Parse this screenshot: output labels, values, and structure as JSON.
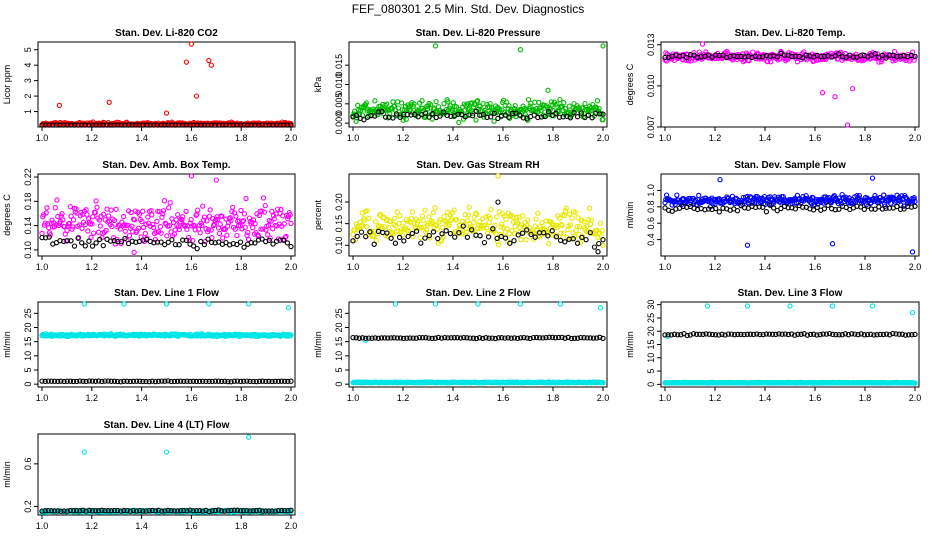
{
  "title": "FEF_080301  2.5 Min. Std. Dev. Diagnostics",
  "colors": {
    "red": "#ff0000",
    "green": "#00bb00",
    "magenta": "#ff00ff",
    "yellow": "#e8e800",
    "blue": "#0000ff",
    "cyan": "#00e5e5",
    "black": "#000000"
  },
  "chart_data": [
    {
      "type": "scatter",
      "title": "Stan. Dev. Li-820 CO2",
      "ylabel": "Licor ppm",
      "xlim": [
        1.0,
        2.0
      ],
      "ylim": [
        0,
        5.5
      ],
      "xticks": [
        "1.0",
        "1.2",
        "1.4",
        "1.6",
        "1.8",
        "2.0"
      ],
      "yticks": [
        {
          "v": 1,
          "label": "1"
        },
        {
          "v": 2,
          "label": "2"
        },
        {
          "v": 3,
          "label": "3"
        },
        {
          "v": 4,
          "label": "4"
        },
        {
          "v": 5,
          "label": "5"
        }
      ],
      "series": [
        {
          "name": "all",
          "color": "red",
          "base": 0.2,
          "spread": 0.15,
          "n": 260,
          "out": [
            [
              1.07,
              1.4
            ],
            [
              1.27,
              1.6
            ],
            [
              1.58,
              4.2
            ],
            [
              1.6,
              5.5
            ],
            [
              1.67,
              4.3
            ],
            [
              1.68,
              4.0
            ],
            [
              1.62,
              2.0
            ],
            [
              1.5,
              0.9
            ]
          ]
        },
        {
          "name": "subset",
          "color": "black",
          "base": 0.1,
          "spread": 0.05,
          "n": 70,
          "out": []
        }
      ]
    },
    {
      "type": "scatter",
      "title": "Stan. Dev. Li-820 Pressure",
      "ylabel": "kPa",
      "xlim": [
        1.0,
        2.0
      ],
      "ylim": [
        -0.001,
        0.021
      ],
      "xticks": [
        "1.0",
        "1.2",
        "1.4",
        "1.6",
        "1.8",
        "2.0"
      ],
      "yticks": [
        {
          "v": 0,
          "label": "0.000"
        },
        {
          "v": 0.005,
          "label": "0.005"
        },
        {
          "v": 0.01,
          "label": "0.010"
        },
        {
          "v": 0.015,
          "label": "0.015"
        }
      ],
      "series": [
        {
          "name": "all",
          "color": "green",
          "base": 0.0035,
          "spread": 0.0035,
          "n": 320,
          "out": [
            [
              1.33,
              0.02
            ],
            [
              1.67,
              0.019
            ],
            [
              2.0,
              0.02
            ],
            [
              1.78,
              0.0085
            ]
          ]
        },
        {
          "name": "subset",
          "color": "black",
          "base": 0.002,
          "spread": 0.0015,
          "n": 70,
          "out": []
        }
      ]
    },
    {
      "type": "scatter",
      "title": "Stan. Dev. Li-820 Temp.",
      "ylabel": "degrees C",
      "xlim": [
        1.0,
        2.0
      ],
      "ylim": [
        0.007,
        0.0132
      ],
      "xticks": [
        "1.0",
        "1.2",
        "1.4",
        "1.6",
        "1.8",
        "2.0"
      ],
      "yticks": [
        {
          "v": 0.007,
          "label": "0.007"
        },
        {
          "v": 0.01,
          "label": "0.010"
        },
        {
          "v": 0.013,
          "label": "0.013"
        }
      ],
      "series": [
        {
          "name": "all",
          "color": "magenta",
          "base": 0.0121,
          "spread": 0.0005,
          "n": 320,
          "out": [
            [
              1.73,
              0.007
            ],
            [
              1.63,
              0.0095
            ],
            [
              1.68,
              0.0092
            ],
            [
              1.15,
              0.0132
            ],
            [
              1.75,
              0.0098
            ]
          ]
        },
        {
          "name": "subset",
          "color": "black",
          "base": 0.0122,
          "spread": 0.0002,
          "n": 70,
          "out": []
        }
      ]
    },
    {
      "type": "scatter",
      "title": "Stan. Dev. Amb. Box Temp.",
      "ylabel": "degrees C",
      "xlim": [
        1.0,
        2.0
      ],
      "ylim": [
        0.09,
        0.225
      ],
      "xticks": [
        "1.0",
        "1.2",
        "1.4",
        "1.6",
        "1.8",
        "2.0"
      ],
      "yticks": [
        {
          "v": 0.1,
          "label": "0.10"
        },
        {
          "v": 0.14,
          "label": "0.14"
        },
        {
          "v": 0.18,
          "label": "0.18"
        },
        {
          "v": 0.22,
          "label": "0.22"
        }
      ],
      "series": [
        {
          "name": "all",
          "color": "magenta",
          "base": 0.145,
          "spread": 0.045,
          "n": 300,
          "out": [
            [
              1.6,
              0.222
            ],
            [
              1.7,
              0.215
            ],
            [
              1.37,
              0.096
            ]
          ]
        },
        {
          "name": "subset",
          "color": "black",
          "base": 0.112,
          "spread": 0.012,
          "n": 70,
          "out": []
        }
      ]
    },
    {
      "type": "scatter",
      "title": "Stan. Dev. Gas Stream RH",
      "ylabel": "percent",
      "xlim": [
        1.0,
        2.0
      ],
      "ylim": [
        0.075,
        0.265
      ],
      "xticks": [
        "1.0",
        "1.2",
        "1.4",
        "1.6",
        "1.8",
        "2.0"
      ],
      "yticks": [
        {
          "v": 0.1,
          "label": "0.10"
        },
        {
          "v": 0.15,
          "label": "0.15"
        },
        {
          "v": 0.2,
          "label": "0.20"
        }
      ],
      "series": [
        {
          "name": "all",
          "color": "yellow",
          "base": 0.145,
          "spread": 0.055,
          "n": 300,
          "out": [
            [
              1.58,
              0.262
            ]
          ]
        },
        {
          "name": "subset",
          "color": "black",
          "base": 0.12,
          "spread": 0.03,
          "n": 60,
          "out": [
            [
              1.58,
              0.2
            ],
            [
              1.98,
              0.085
            ]
          ]
        }
      ]
    },
    {
      "type": "scatter",
      "title": "Stan. Dev. Sample Flow",
      "ylabel": "ml/min",
      "xlim": [
        1.0,
        2.0
      ],
      "ylim": [
        0.2,
        1.2
      ],
      "xticks": [
        "1.0",
        "1.2",
        "1.4",
        "1.6",
        "1.8",
        "2.0"
      ],
      "yticks": [
        {
          "v": 0.4,
          "label": "0.4"
        },
        {
          "v": 0.6,
          "label": "0.6"
        },
        {
          "v": 0.8,
          "label": "0.8"
        },
        {
          "v": 1.0,
          "label": "1.0"
        }
      ],
      "series": [
        {
          "name": "all",
          "color": "blue",
          "base": 0.88,
          "spread": 0.09,
          "n": 320,
          "out": [
            [
              1.33,
              0.33
            ],
            [
              1.67,
              0.35
            ],
            [
              1.99,
              0.25
            ],
            [
              1.83,
              1.15
            ],
            [
              1.22,
              1.13
            ]
          ]
        },
        {
          "name": "subset",
          "color": "black",
          "base": 0.78,
          "spread": 0.06,
          "n": 70,
          "out": []
        }
      ]
    },
    {
      "type": "scatter",
      "title": "Stan. Dev. Line 1 Flow",
      "ylabel": "ml/min",
      "xlim": [
        1.0,
        2.0
      ],
      "ylim": [
        -1,
        29
      ],
      "xticks": [
        "1.0",
        "1.2",
        "1.4",
        "1.6",
        "1.8",
        "2.0"
      ],
      "yticks": [
        {
          "v": 0,
          "label": "0"
        },
        {
          "v": 5,
          "label": "5"
        },
        {
          "v": 10,
          "label": "10"
        },
        {
          "v": 15,
          "label": "15"
        },
        {
          "v": 20,
          "label": "20"
        },
        {
          "v": 25,
          "label": "25"
        }
      ],
      "series": [
        {
          "name": "all",
          "color": "cyan",
          "base": 17.3,
          "spread": 0.6,
          "n": 330,
          "out": [
            [
              1.17,
              28.5
            ],
            [
              1.33,
              28.5
            ],
            [
              1.5,
              28.5
            ],
            [
              1.67,
              28.5
            ],
            [
              1.83,
              28.5
            ],
            [
              1.99,
              27
            ]
          ]
        },
        {
          "name": "subset",
          "color": "black",
          "base": 1,
          "spread": 0.15,
          "n": 80,
          "out": []
        }
      ]
    },
    {
      "type": "scatter",
      "title": "Stan. Dev. Line 2 Flow",
      "ylabel": "ml/min",
      "xlim": [
        1.0,
        2.0
      ],
      "ylim": [
        -1,
        29
      ],
      "xticks": [
        "1.0",
        "1.2",
        "1.4",
        "1.6",
        "1.8",
        "2.0"
      ],
      "yticks": [
        {
          "v": 0,
          "label": "0"
        },
        {
          "v": 5,
          "label": "5"
        },
        {
          "v": 10,
          "label": "10"
        },
        {
          "v": 15,
          "label": "15"
        },
        {
          "v": 20,
          "label": "20"
        },
        {
          "v": 25,
          "label": "25"
        }
      ],
      "series": [
        {
          "name": "all",
          "color": "cyan",
          "base": 0.6,
          "spread": 0.2,
          "n": 330,
          "out": [
            [
              1.17,
              28.5
            ],
            [
              1.33,
              28.5
            ],
            [
              1.5,
              28.5
            ],
            [
              1.67,
              28.5
            ],
            [
              1.83,
              28.5
            ],
            [
              1.99,
              27
            ],
            [
              1.05,
              15.5
            ]
          ]
        },
        {
          "name": "subset",
          "color": "black",
          "base": 16.3,
          "spread": 0.3,
          "n": 80,
          "out": []
        }
      ]
    },
    {
      "type": "scatter",
      "title": "Stan. Dev. Line 3 Flow",
      "ylabel": "ml/min",
      "xlim": [
        1.0,
        2.0
      ],
      "ylim": [
        -1,
        31
      ],
      "xticks": [
        "1.0",
        "1.2",
        "1.4",
        "1.6",
        "1.8",
        "2.0"
      ],
      "yticks": [
        {
          "v": 0,
          "label": "0"
        },
        {
          "v": 5,
          "label": "5"
        },
        {
          "v": 10,
          "label": "10"
        },
        {
          "v": 15,
          "label": "15"
        },
        {
          "v": 20,
          "label": "20"
        },
        {
          "v": 25,
          "label": "25"
        },
        {
          "v": 30,
          "label": "30"
        }
      ],
      "series": [
        {
          "name": "all",
          "color": "cyan",
          "base": 0.6,
          "spread": 0.2,
          "n": 330,
          "out": [
            [
              1.17,
              29.5
            ],
            [
              1.33,
              29.5
            ],
            [
              1.5,
              29.5
            ],
            [
              1.67,
              29.5
            ],
            [
              1.83,
              29.5
            ],
            [
              1.99,
              27
            ],
            [
              1.01,
              18
            ]
          ]
        },
        {
          "name": "subset",
          "color": "black",
          "base": 18.8,
          "spread": 0.5,
          "n": 80,
          "out": []
        }
      ]
    },
    {
      "type": "scatter",
      "title": "Stan. Dev. Line 4 (LT) Flow",
      "ylabel": "ml/min",
      "xlim": [
        1.0,
        2.0
      ],
      "ylim": [
        0.12,
        0.88
      ],
      "xticks": [
        "1.0",
        "1.2",
        "1.4",
        "1.6",
        "1.8",
        "2.0"
      ],
      "yticks": [
        {
          "v": 0.2,
          "label": "0.2"
        },
        {
          "v": 0.6,
          "label": "0.6"
        }
      ],
      "series": [
        {
          "name": "all",
          "color": "cyan",
          "base": 0.155,
          "spread": 0.012,
          "n": 330,
          "out": [
            [
              1.17,
              0.71
            ],
            [
              1.5,
              0.71
            ],
            [
              1.83,
              0.85
            ]
          ]
        },
        {
          "name": "subset",
          "color": "black",
          "base": 0.16,
          "spread": 0.008,
          "n": 80,
          "out": []
        }
      ]
    }
  ]
}
